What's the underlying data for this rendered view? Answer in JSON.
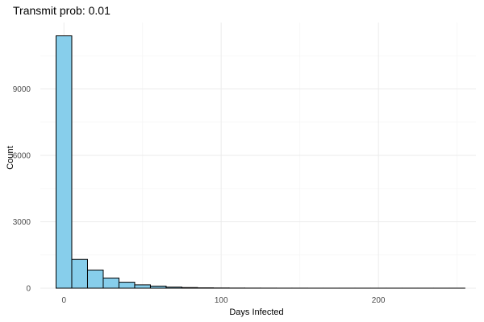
{
  "chart_data": {
    "type": "bar",
    "title": "Transmit prob: 0.01",
    "xlabel": "Days Infected",
    "ylabel": "Count",
    "x_ticks": [
      0,
      100,
      200
    ],
    "y_ticks": [
      0,
      3000,
      6000,
      9000
    ],
    "xlim": [
      -15,
      262
    ],
    "ylim": [
      0,
      12000
    ],
    "grid": true,
    "legend": "none",
    "bar_fill": "#87ceeb",
    "bar_stroke": "#000000",
    "bins": [
      {
        "x0": -5,
        "x1": 5,
        "count": 11400
      },
      {
        "x0": 5,
        "x1": 15,
        "count": 1300
      },
      {
        "x0": 15,
        "x1": 25,
        "count": 820
      },
      {
        "x0": 25,
        "x1": 35,
        "count": 460
      },
      {
        "x0": 35,
        "x1": 45,
        "count": 270
      },
      {
        "x0": 45,
        "x1": 55,
        "count": 150
      },
      {
        "x0": 55,
        "x1": 65,
        "count": 95
      },
      {
        "x0": 65,
        "x1": 75,
        "count": 50
      },
      {
        "x0": 75,
        "x1": 85,
        "count": 28
      },
      {
        "x0": 85,
        "x1": 95,
        "count": 16
      },
      {
        "x0": 95,
        "x1": 105,
        "count": 10
      },
      {
        "x0": 105,
        "x1": 115,
        "count": 6
      },
      {
        "x0": 115,
        "x1": 125,
        "count": 4
      },
      {
        "x0": 125,
        "x1": 135,
        "count": 3
      },
      {
        "x0": 135,
        "x1": 145,
        "count": 2
      },
      {
        "x0": 145,
        "x1": 155,
        "count": 2
      },
      {
        "x0": 155,
        "x1": 165,
        "count": 1
      },
      {
        "x0": 165,
        "x1": 175,
        "count": 1
      },
      {
        "x0": 175,
        "x1": 185,
        "count": 1
      },
      {
        "x0": 185,
        "x1": 195,
        "count": 1
      },
      {
        "x0": 195,
        "x1": 205,
        "count": 1
      },
      {
        "x0": 205,
        "x1": 215,
        "count": 1
      },
      {
        "x0": 215,
        "x1": 225,
        "count": 1
      },
      {
        "x0": 225,
        "x1": 235,
        "count": 1
      },
      {
        "x0": 235,
        "x1": 245,
        "count": 1
      },
      {
        "x0": 245,
        "x1": 255,
        "count": 1
      }
    ]
  }
}
